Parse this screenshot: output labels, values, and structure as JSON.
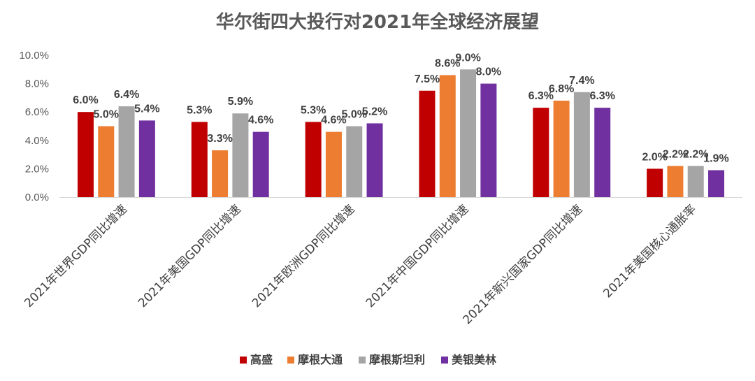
{
  "chart_data": {
    "type": "bar",
    "title": "华尔街四大投行对2021年全球经济展望",
    "xlabel": "",
    "ylabel": "",
    "ylim": [
      0,
      10
    ],
    "yticks": [
      "0.0%",
      "2.0%",
      "4.0%",
      "6.0%",
      "8.0%",
      "10.0%"
    ],
    "grid": false,
    "legend_position": "bottom",
    "categories": [
      "2021年世界GDP同比增速",
      "2021年美国GDP同比增速",
      "2021年欧洲GDP同比增速",
      "2021年中国GDP同比增速",
      "2021年新兴国家GDP同比增速",
      "2021年美国核心通胀率"
    ],
    "series": [
      {
        "name": "高盛",
        "color": "#C00000",
        "values": [
          6.0,
          5.3,
          5.3,
          7.5,
          6.3,
          2.0
        ],
        "labels": [
          "6.0%",
          "5.3%",
          "5.3%",
          "7.5%",
          "6.3%",
          "2.0%"
        ]
      },
      {
        "name": "摩根大通",
        "color": "#ED7D31",
        "values": [
          5.0,
          3.3,
          4.6,
          8.6,
          6.8,
          2.2
        ],
        "labels": [
          "5.0%",
          "3.3%",
          "4.6%",
          "8.6%",
          "6.8%",
          "2.2%"
        ]
      },
      {
        "name": "摩根斯坦利",
        "color": "#A5A5A5",
        "values": [
          6.4,
          5.9,
          5.0,
          9.0,
          7.4,
          2.2
        ],
        "labels": [
          "6.4%",
          "5.9%",
          "5.0%",
          "9.0%",
          "7.4%",
          "2.2%"
        ]
      },
      {
        "name": "美银美林",
        "color": "#7030A0",
        "values": [
          5.4,
          4.6,
          5.2,
          8.0,
          6.3,
          1.9
        ],
        "labels": [
          "5.4%",
          "4.6%",
          "5.2%",
          "8.0%",
          "6.3%",
          "1.9%"
        ]
      }
    ]
  }
}
